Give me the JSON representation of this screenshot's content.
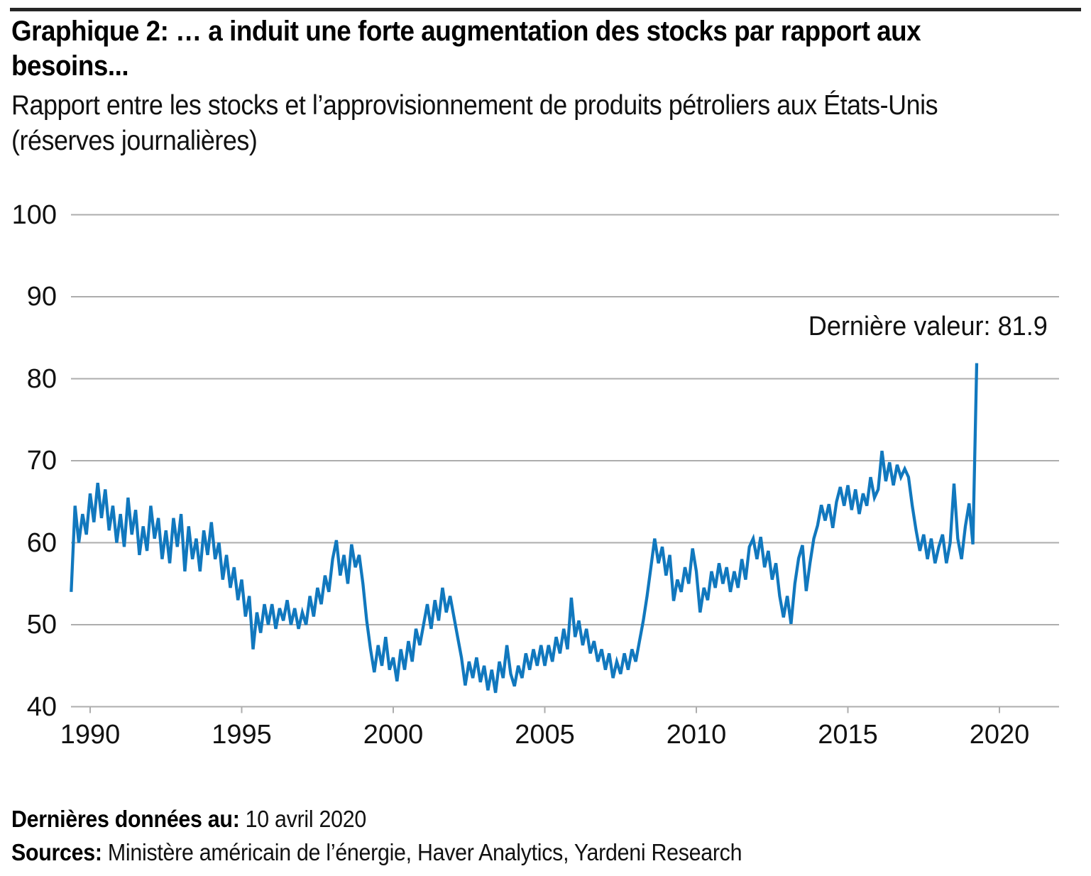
{
  "page": {
    "title_lines": [
      "Graphique 2: … a induit une forte augmentation des stocks par rapport aux",
      "besoins..."
    ],
    "subtitle_lines": [
      "Rapport entre les stocks et l’approvisionnement de produits pétroliers aux États-Unis",
      "(réserves journalières)"
    ],
    "footer": {
      "last_data_label": "Dernières données au:",
      "last_data_value": " 10 avril 2020",
      "sources_label": "Sources:",
      "sources_value": " Ministère américain de l’énergie, Haver Analytics, Yardeni Research"
    }
  },
  "colors": {
    "line": "#1178BE",
    "grid": "#ADADAD",
    "tick": "#ADADAD",
    "top_rule": "#262626",
    "text": "#000000"
  },
  "chart_data": {
    "type": "line",
    "title": "Graphique 2: … a induit une forte augmentation des stocks par rapport aux besoins...",
    "subtitle": "Rapport entre les stocks et l’approvisionnement de produits pétroliers aux États-Unis (réserves journalières)",
    "annotation": "Dernière valeur: 81.9",
    "last_value": 81.9,
    "as_of": "10 avril 2020",
    "sources": "Ministère américain de l’énergie, Haver Analytics, Yardeni Research",
    "grid": true,
    "legend": "none",
    "y_axis": {
      "min": 40,
      "max": 100,
      "ticks": [
        100,
        90,
        80,
        70,
        60,
        50,
        40
      ]
    },
    "x_axis": {
      "ticks": [
        1990,
        1995,
        2000,
        2005,
        2010,
        2015,
        2020
      ]
    },
    "series": {
      "name": "Stocks / approvisionnement (réserves journalières)",
      "start": 1990.375,
      "step": 0.125,
      "values": [
        54.0,
        64.5,
        60.0,
        63.5,
        61.0,
        66.0,
        62.5,
        67.3,
        63.0,
        66.5,
        61.5,
        64.5,
        60.0,
        63.5,
        59.5,
        65.5,
        61.0,
        64.0,
        58.5,
        62.0,
        59.0,
        64.5,
        60.5,
        63.0,
        58.0,
        61.5,
        57.5,
        63.0,
        59.5,
        63.5,
        56.5,
        62.0,
        58.0,
        60.5,
        56.5,
        61.5,
        58.5,
        62.5,
        58.0,
        60.0,
        55.5,
        58.5,
        54.5,
        57.0,
        53.0,
        55.5,
        51.0,
        53.5,
        47.0,
        51.5,
        49.0,
        52.5,
        50.0,
        52.5,
        49.5,
        52.0,
        50.5,
        53.0,
        50.0,
        52.0,
        49.5,
        51.5,
        50.0,
        53.5,
        51.0,
        54.5,
        52.5,
        56.0,
        54.0,
        58.0,
        60.3,
        56.0,
        58.5,
        55.0,
        59.8,
        57.0,
        58.5,
        55.0,
        50.5,
        47.0,
        44.2,
        47.5,
        45.0,
        48.5,
        44.5,
        46.0,
        43.1,
        47.0,
        44.5,
        48.0,
        45.5,
        49.5,
        47.5,
        50.0,
        52.5,
        49.5,
        53.0,
        50.5,
        54.5,
        51.5,
        53.5,
        51.0,
        48.5,
        46.0,
        42.6,
        45.5,
        43.5,
        46.0,
        43.0,
        45.0,
        42.0,
        44.5,
        41.7,
        45.5,
        43.5,
        47.5,
        44.0,
        42.5,
        45.0,
        43.5,
        46.5,
        44.5,
        47.0,
        45.0,
        47.5,
        45.0,
        47.5,
        45.5,
        48.5,
        46.5,
        49.5,
        47.0,
        53.3,
        48.5,
        50.5,
        47.5,
        49.5,
        46.5,
        48.0,
        45.5,
        47.0,
        44.5,
        46.5,
        43.5,
        45.5,
        44.0,
        46.5,
        44.5,
        47.0,
        45.5,
        48.0,
        50.5,
        53.5,
        57.0,
        60.5,
        57.5,
        59.5,
        56.0,
        58.5,
        52.9,
        55.5,
        54.0,
        57.0,
        55.0,
        59.3,
        56.5,
        51.5,
        54.5,
        53.0,
        56.5,
        54.5,
        57.5,
        55.0,
        57.0,
        54.0,
        56.5,
        54.5,
        58.0,
        55.5,
        59.5,
        60.5,
        58.0,
        60.7,
        57.0,
        59.0,
        55.5,
        57.5,
        53.5,
        50.9,
        53.5,
        50.1,
        55.0,
        58.1,
        59.7,
        54.1,
        57.5,
        60.5,
        62.1,
        64.6,
        62.7,
        64.7,
        61.8,
        65.0,
        66.8,
        64.5,
        67.0,
        64.0,
        66.5,
        63.5,
        66.0,
        64.5,
        68.0,
        65.5,
        66.5,
        71.2,
        67.5,
        69.8,
        67.0,
        69.5,
        68.0,
        69.0,
        68.0,
        64.5,
        61.5,
        59.0,
        61.0,
        58.0,
        60.5,
        57.5,
        59.5,
        61.0,
        57.5,
        60.0,
        67.2,
        60.5,
        58.0,
        62.0,
        64.8,
        59.8,
        81.9
      ]
    }
  }
}
